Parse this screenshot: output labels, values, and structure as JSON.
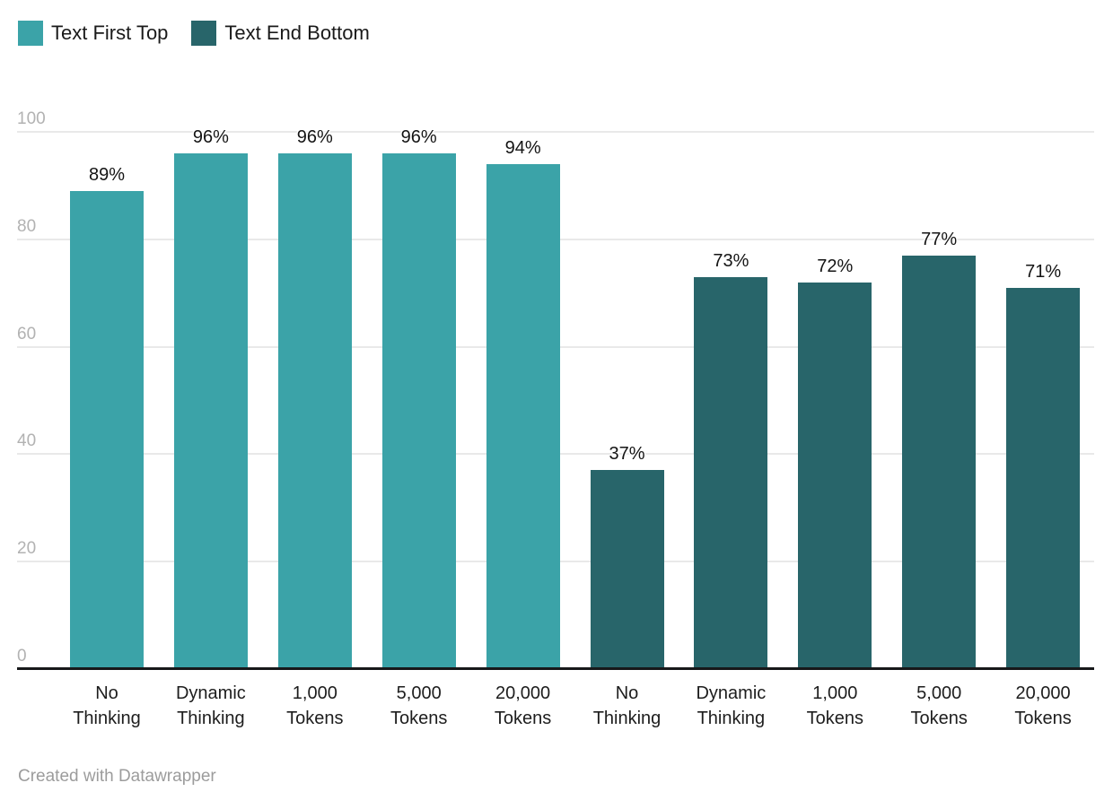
{
  "legend": {
    "items": [
      {
        "label": "Text First Top",
        "color": "#3BA3A8"
      },
      {
        "label": "Text End Bottom",
        "color": "#28656A"
      }
    ]
  },
  "footer": {
    "credit": "Created with Datawrapper"
  },
  "chart_data": {
    "type": "bar",
    "title": "",
    "categories": [
      "No Thinking",
      "Dynamic Thinking",
      "1,000 Tokens",
      "5,000 Tokens",
      "20,000 Tokens"
    ],
    "series": [
      {
        "name": "Text First Top",
        "color": "#3BA3A8",
        "values": [
          89,
          96,
          96,
          96,
          94
        ]
      },
      {
        "name": "Text End Bottom",
        "color": "#28656A",
        "values": [
          37,
          73,
          72,
          77,
          71
        ]
      }
    ],
    "value_suffix": "%",
    "ylim": [
      0,
      100
    ],
    "yticks": [
      0,
      20,
      40,
      60,
      80,
      100
    ],
    "grid": true,
    "legend_position": "top-left",
    "colors": {
      "grid": "#e9e9e9",
      "baseline": "#17181a",
      "tick_label": "#b2b2b2",
      "value_label": "#141414",
      "category_label": "#1d1d1d",
      "credit": "#9c9c9c"
    }
  }
}
